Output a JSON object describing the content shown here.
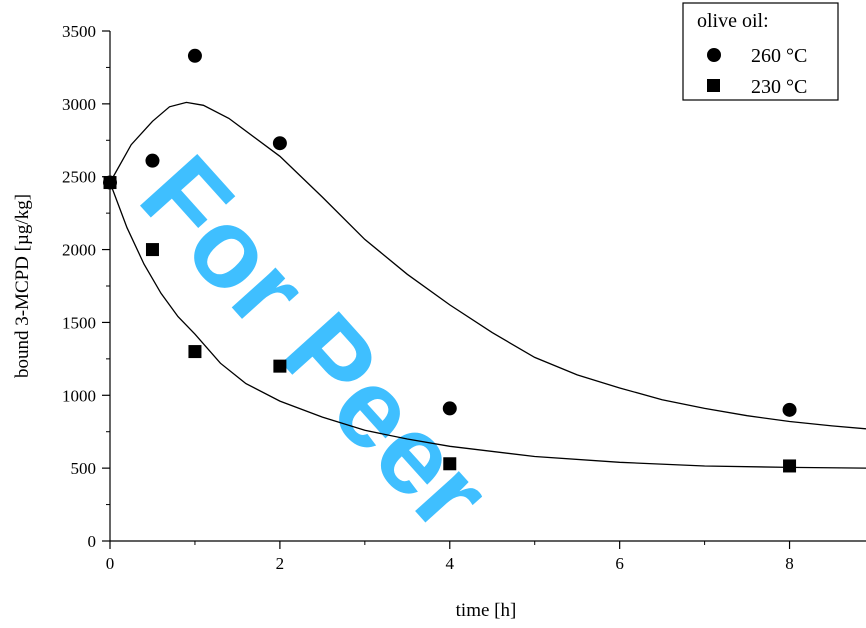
{
  "watermark": "For Peer",
  "colors": {
    "axis": "#000000",
    "markers": "#000000",
    "fit_curve": "#000000",
    "watermark": "#00aaff",
    "background": "#ffffff"
  },
  "chart_data": {
    "type": "scatter",
    "title": "",
    "xlabel": "time [h]",
    "ylabel": "bound 3-MCPD [µg/kg]",
    "xlim": [
      0,
      8.9
    ],
    "ylim": [
      0,
      3500
    ],
    "grid": false,
    "x_ticks": [
      0,
      2,
      4,
      6,
      8
    ],
    "y_ticks": [
      0,
      500,
      1000,
      1500,
      2000,
      2500,
      3000,
      3500
    ],
    "legend": {
      "title": "olive oil:",
      "position": "top-right"
    },
    "series": [
      {
        "name": "260 °C",
        "marker": "circle",
        "points": [
          {
            "x": 0,
            "y": 2460
          },
          {
            "x": 0.5,
            "y": 2610
          },
          {
            "x": 1,
            "y": 3330
          },
          {
            "x": 2,
            "y": 2730
          },
          {
            "x": 4,
            "y": 910
          },
          {
            "x": 8,
            "y": 900
          }
        ],
        "fit": [
          {
            "x": 0,
            "y": 2460
          },
          {
            "x": 0.25,
            "y": 2720
          },
          {
            "x": 0.5,
            "y": 2880
          },
          {
            "x": 0.7,
            "y": 2980
          },
          {
            "x": 0.9,
            "y": 3010
          },
          {
            "x": 1.1,
            "y": 2990
          },
          {
            "x": 1.4,
            "y": 2900
          },
          {
            "x": 2,
            "y": 2640
          },
          {
            "x": 2.5,
            "y": 2360
          },
          {
            "x": 3,
            "y": 2070
          },
          {
            "x": 3.5,
            "y": 1830
          },
          {
            "x": 4,
            "y": 1620
          },
          {
            "x": 4.5,
            "y": 1430
          },
          {
            "x": 5,
            "y": 1260
          },
          {
            "x": 5.5,
            "y": 1140
          },
          {
            "x": 6,
            "y": 1050
          },
          {
            "x": 6.5,
            "y": 970
          },
          {
            "x": 7,
            "y": 910
          },
          {
            "x": 7.5,
            "y": 860
          },
          {
            "x": 8,
            "y": 820
          },
          {
            "x": 8.5,
            "y": 790
          },
          {
            "x": 8.9,
            "y": 770
          }
        ]
      },
      {
        "name": "230 °C",
        "marker": "square",
        "points": [
          {
            "x": 0,
            "y": 2460
          },
          {
            "x": 0.5,
            "y": 2000
          },
          {
            "x": 1,
            "y": 1300
          },
          {
            "x": 2,
            "y": 1200
          },
          {
            "x": 4,
            "y": 530
          },
          {
            "x": 8,
            "y": 515
          }
        ],
        "fit": [
          {
            "x": 0,
            "y": 2460
          },
          {
            "x": 0.2,
            "y": 2150
          },
          {
            "x": 0.4,
            "y": 1900
          },
          {
            "x": 0.6,
            "y": 1700
          },
          {
            "x": 0.8,
            "y": 1540
          },
          {
            "x": 1,
            "y": 1420
          },
          {
            "x": 1.3,
            "y": 1220
          },
          {
            "x": 1.6,
            "y": 1080
          },
          {
            "x": 2,
            "y": 960
          },
          {
            "x": 2.5,
            "y": 850
          },
          {
            "x": 3,
            "y": 760
          },
          {
            "x": 3.5,
            "y": 700
          },
          {
            "x": 4,
            "y": 650
          },
          {
            "x": 5,
            "y": 580
          },
          {
            "x": 6,
            "y": 540
          },
          {
            "x": 7,
            "y": 515
          },
          {
            "x": 8,
            "y": 505
          },
          {
            "x": 8.9,
            "y": 500
          }
        ]
      }
    ]
  }
}
